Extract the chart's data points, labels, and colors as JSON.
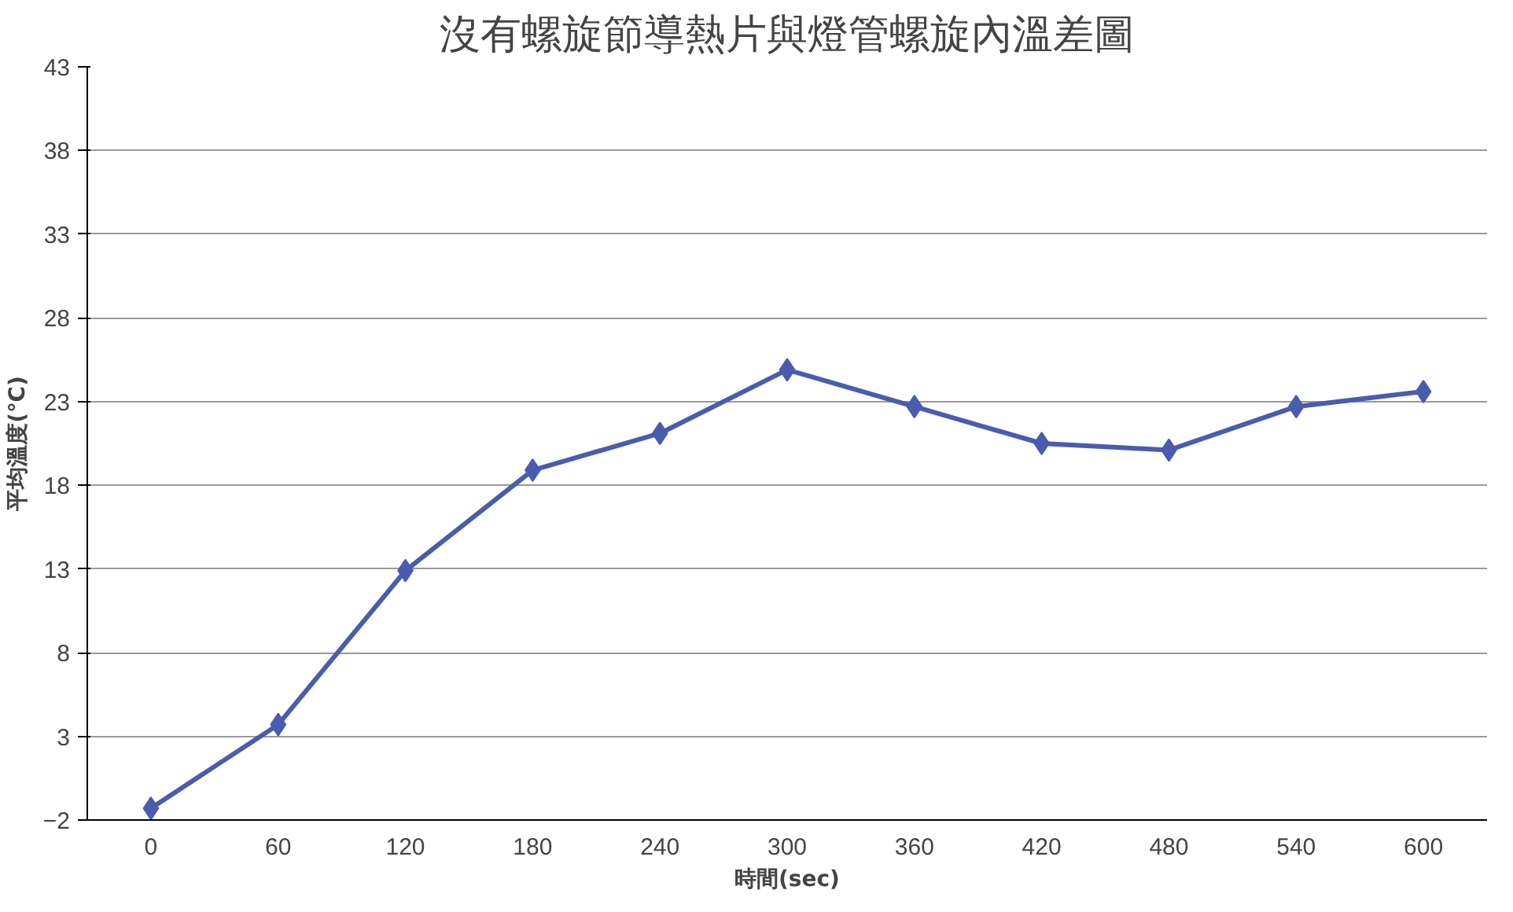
{
  "chart_data": {
    "type": "line",
    "title": "沒有螺旋節導熱片與燈管螺旋內溫差圖",
    "xlabel": "時間(sec)",
    "ylabel": "平均溫度(℃)",
    "categories": [
      "0",
      "60",
      "120",
      "180",
      "240",
      "300",
      "360",
      "420",
      "480",
      "540",
      "600"
    ],
    "series": [
      {
        "color": "#4a5cb0",
        "values": [
          -1.3,
          3.7,
          12.9,
          18.9,
          21.1,
          24.9,
          22.7,
          20.5,
          20.1,
          22.7,
          23.6
        ]
      }
    ],
    "ylim": [
      -2,
      43
    ],
    "yticks": [
      -2,
      3,
      8,
      13,
      18,
      23,
      28,
      33,
      38,
      43
    ],
    "grid": "y",
    "marker": "diamond"
  }
}
